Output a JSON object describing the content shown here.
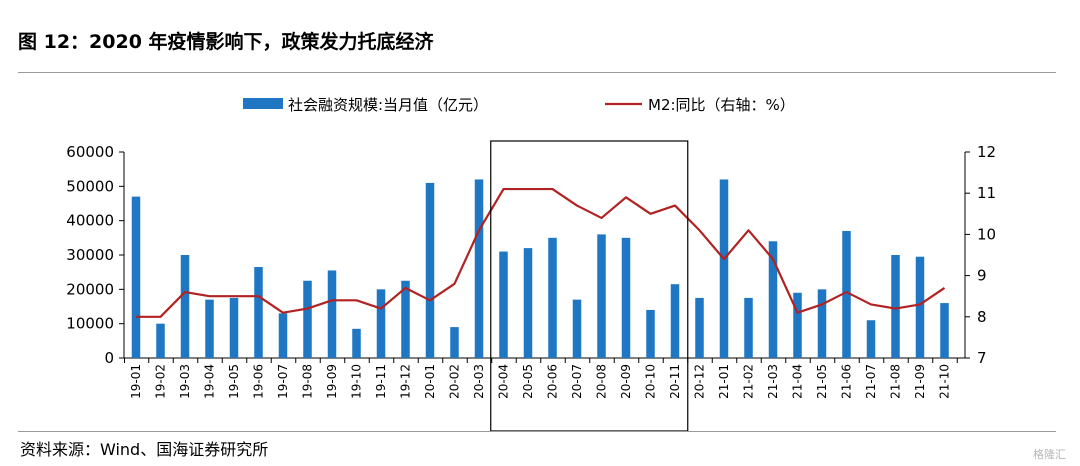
{
  "header": {
    "title": "图 12：2020 年疫情影响下，政策发力托底经济"
  },
  "footer": {
    "source": "资料来源：Wind、国海证券研究所",
    "watermark": "格隆汇"
  },
  "chart_data": {
    "type": "bar+line",
    "categories": [
      "19-01",
      "19-02",
      "19-03",
      "19-04",
      "19-05",
      "19-06",
      "19-07",
      "19-08",
      "19-09",
      "19-10",
      "19-11",
      "19-12",
      "20-01",
      "20-02",
      "20-03",
      "20-04",
      "20-05",
      "20-06",
      "20-07",
      "20-08",
      "20-09",
      "20-10",
      "20-11",
      "20-12",
      "21-01",
      "21-02",
      "21-03",
      "21-04",
      "21-05",
      "21-06",
      "21-07",
      "21-08",
      "21-09",
      "21-10"
    ],
    "series": [
      {
        "name": "社会融资规模:当月值（亿元）",
        "type": "bar",
        "axis": "left",
        "color": "#1f77c4",
        "values": [
          47000,
          10000,
          30000,
          17000,
          17500,
          26500,
          13000,
          22500,
          25500,
          8500,
          20000,
          22500,
          51000,
          9000,
          52000,
          31000,
          32000,
          35000,
          17000,
          36000,
          35000,
          14000,
          21500,
          17500,
          52000,
          17500,
          34000,
          19000,
          20000,
          37000,
          11000,
          30000,
          29500,
          16000
        ]
      },
      {
        "name": "M2:同比（右轴：%）",
        "type": "line",
        "axis": "right",
        "color": "#b22222",
        "values": [
          8.0,
          8.0,
          8.6,
          8.5,
          8.5,
          8.5,
          8.1,
          8.2,
          8.4,
          8.4,
          8.2,
          8.7,
          8.4,
          8.8,
          10.1,
          11.1,
          11.1,
          11.1,
          10.7,
          10.4,
          10.9,
          10.5,
          10.7,
          10.1,
          9.4,
          10.1,
          9.4,
          8.1,
          8.3,
          8.6,
          8.3,
          8.2,
          8.3,
          8.7
        ]
      }
    ],
    "y_left": {
      "min": 0,
      "max": 60000,
      "ticks": [
        0,
        10000,
        20000,
        30000,
        40000,
        50000,
        60000
      ]
    },
    "y_right": {
      "min": 7,
      "max": 12,
      "ticks": [
        7,
        8,
        9,
        10,
        11,
        12
      ]
    },
    "highlight": {
      "from": "20-04",
      "to": "20-11"
    },
    "legend": {
      "placement": "top-center"
    }
  }
}
